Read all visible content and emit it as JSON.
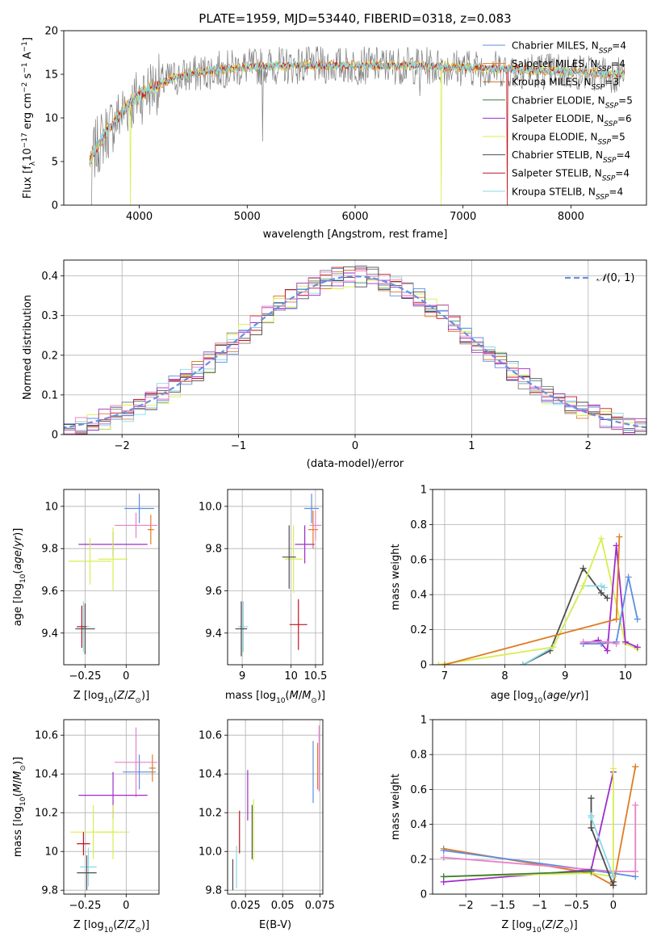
{
  "figure_title": "PLATE=1959, MJD=53440, FIBERID=0318, z=0.083",
  "colors": {
    "blue": "#5b8fe0",
    "orange": "#e07b24",
    "brown": "#b8742a",
    "gray": "#7f7f7f",
    "purple": "#a02cc8",
    "yellow": "#d8ee50",
    "dark": "#4d4d4d",
    "red": "#c0141f",
    "cyan": "#8ad8e8",
    "pink": "#e880c8",
    "gauss": "#6a8fdc"
  },
  "chart_data": [
    {
      "name": "spectrum",
      "type": "line",
      "title": "PLATE=1959, MJD=53440, FIBERID=0318, z=0.083",
      "xlabel": "wavelength [Angstrom, rest frame]",
      "ylabel": "Flux [f_λ 10^-17 erg cm^-2 s^-1 A^-1]",
      "xlim": [
        3300,
        8700
      ],
      "ylim": [
        0,
        20
      ],
      "xticks": [
        4000,
        5000,
        6000,
        7000,
        8000
      ],
      "yticks": [
        0,
        5,
        10,
        15,
        20
      ],
      "grid": false,
      "legend_position": "right",
      "series": [
        {
          "name": "Chabrier MILES, N_SSP=4",
          "color": "#5b8fe0"
        },
        {
          "name": "Salpeter MILES, N_SSP=4",
          "color": "#e07b24"
        },
        {
          "name": "Kroupa MILES, N_SSP=3",
          "color": "#b8742a"
        },
        {
          "name": "Chabrier ELODIE, N_SSP=5",
          "color": "#3a7d3a"
        },
        {
          "name": "Salpeter ELODIE, N_SSP=6",
          "color": "#a02cc8"
        },
        {
          "name": "Kroupa ELODIE, N_SSP=5",
          "color": "#d8ee50"
        },
        {
          "name": "Chabrier STELIB, N_SSP=4",
          "color": "#4d4d4d"
        },
        {
          "name": "Salpeter STELIB, N_SSP=4",
          "color": "#c0141f"
        },
        {
          "name": "Kroupa STELIB, N_SSP=4",
          "color": "#8ad8e8"
        }
      ],
      "continuum": {
        "x": [
          3540,
          3600,
          3700,
          3800,
          3900,
          4000,
          4100,
          4200,
          4300,
          4500,
          4700,
          5000,
          5200,
          5500,
          6000,
          6500,
          7000,
          7200,
          7400,
          7600,
          8000,
          8300,
          8500
        ],
        "y": [
          5,
          6.5,
          8.5,
          10,
          11.5,
          12.5,
          13.5,
          14,
          14.5,
          15,
          15.5,
          15.8,
          16,
          16,
          16,
          16,
          15.8,
          15.7,
          15.6,
          15.5,
          15.3,
          15.1,
          15
        ]
      }
    },
    {
      "name": "residual-distribution",
      "type": "histogram",
      "xlabel": "(data-model)/error",
      "ylabel": "Normed distribution",
      "xlim": [
        -2.5,
        2.5
      ],
      "ylim": [
        0,
        0.44
      ],
      "xticks": [
        -2,
        -1,
        0,
        1,
        2
      ],
      "yticks": [
        0.0,
        0.1,
        0.2,
        0.3,
        0.4
      ],
      "grid": true,
      "legend": [
        "N(0,1)"
      ],
      "legend_position": "top-right",
      "bin_width": 0.1,
      "reference_curve": "gaussian, mean 0, sigma 1"
    },
    {
      "name": "age-vs-metallicity",
      "type": "error-cross",
      "xlabel": "Z [log10(Z/Z⊙)]",
      "ylabel": "age  [log10(age/yr)]",
      "xlim": [
        -0.38,
        0.2
      ],
      "ylim": [
        9.25,
        10.08
      ],
      "xticks": [
        -0.25,
        0.0
      ],
      "yticks": [
        9.4,
        9.6,
        9.8,
        10.0
      ],
      "grid": true,
      "points": [
        {
          "x": 0.08,
          "y": 9.99,
          "xerr": 0.09,
          "yerr": 0.07,
          "color": "#5b8fe0"
        },
        {
          "x": 0.15,
          "y": 9.89,
          "xerr": 0.02,
          "yerr": 0.07,
          "color": "#e07b24"
        },
        {
          "x": 0.06,
          "y": 9.91,
          "xerr": 0.13,
          "yerr": 0.06,
          "color": "#e880c8"
        },
        {
          "x": -0.08,
          "y": 9.82,
          "xerr": 0.21,
          "yerr": 0.06,
          "color": "#a02cc8"
        },
        {
          "x": -0.08,
          "y": 9.75,
          "xerr": 0.09,
          "yerr": 0.15,
          "color": "#d8ee50"
        },
        {
          "x": -0.22,
          "y": 9.74,
          "xerr": 0.13,
          "yerr": 0.11,
          "color": "#d8ee50"
        },
        {
          "x": -0.26,
          "y": 9.43,
          "xerr": 0.04,
          "yerr": 0.12,
          "color": "#8ad8e8"
        },
        {
          "x": -0.27,
          "y": 9.43,
          "xerr": 0.03,
          "yerr": 0.1,
          "color": "#c0141f"
        },
        {
          "x": -0.25,
          "y": 9.42,
          "xerr": 0.06,
          "yerr": 0.12,
          "color": "#4d4d4d"
        }
      ]
    },
    {
      "name": "age-vs-mass",
      "type": "error-cross",
      "xlabel": "mass [log10(M/M⊙)]",
      "ylabel": "",
      "xlim": [
        8.7,
        10.65
      ],
      "ylim": [
        9.25,
        10.08
      ],
      "xticks": [
        9.0,
        10.0,
        10.5
      ],
      "ytick_labels": [
        "9.4",
        "9.6",
        "9.8",
        "10.0"
      ],
      "yticks": [
        9.4,
        9.6,
        9.8,
        10.0
      ],
      "grid": true,
      "points": [
        {
          "x": 10.42,
          "y": 9.99,
          "xerr": 0.15,
          "yerr": 0.07,
          "color": "#5b8fe0"
        },
        {
          "x": 10.45,
          "y": 9.89,
          "xerr": 0.1,
          "yerr": 0.09,
          "color": "#e07b24"
        },
        {
          "x": 10.5,
          "y": 9.91,
          "xerr": 0.12,
          "yerr": 0.07,
          "color": "#e880c8"
        },
        {
          "x": 10.28,
          "y": 9.82,
          "xerr": 0.2,
          "yerr": 0.09,
          "color": "#a02cc8"
        },
        {
          "x": 10.05,
          "y": 9.75,
          "xerr": 0.18,
          "yerr": 0.16,
          "color": "#d8ee50"
        },
        {
          "x": 9.96,
          "y": 9.76,
          "xerr": 0.14,
          "yerr": 0.15,
          "color": "#4d4d4d"
        },
        {
          "x": 9.02,
          "y": 9.43,
          "xerr": 0.1,
          "yerr": 0.12,
          "color": "#8ad8e8"
        },
        {
          "x": 10.15,
          "y": 9.44,
          "xerr": 0.18,
          "yerr": 0.12,
          "color": "#c0141f"
        },
        {
          "x": 8.98,
          "y": 9.42,
          "xerr": 0.12,
          "yerr": 0.13,
          "color": "#4d4d4d"
        }
      ]
    },
    {
      "name": "mass-weight-vs-age",
      "type": "line",
      "xlabel": "age  [log10(age/yr)]",
      "ylabel": "mass weight",
      "xlim": [
        6.8,
        10.35
      ],
      "ylim": [
        0,
        1.0
      ],
      "xticks": [
        7,
        8,
        9,
        10
      ],
      "yticks": [
        0.0,
        0.2,
        0.4,
        0.6,
        0.8,
        1.0
      ],
      "grid": true,
      "series": [
        {
          "color": "#4d4d4d",
          "x": [
            8.3,
            8.75,
            9.3,
            9.6,
            9.7
          ],
          "y": [
            0.0,
            0.08,
            0.55,
            0.41,
            0.38
          ]
        },
        {
          "color": "#8ad8e8",
          "x": [
            8.3,
            8.8,
            9.3,
            9.6,
            9.65
          ],
          "y": [
            0.0,
            0.1,
            0.45,
            0.45,
            0.44
          ]
        },
        {
          "color": "#d8ee50",
          "x": [
            6.9,
            8.8,
            9.3,
            9.6,
            10.0,
            10.2
          ],
          "y": [
            0.0,
            0.1,
            0.45,
            0.72,
            0.12,
            0.09
          ]
        },
        {
          "color": "#a02cc8",
          "x": [
            9.3,
            9.55,
            9.7,
            9.85,
            10.0,
            10.2
          ],
          "y": [
            0.12,
            0.14,
            0.08,
            0.68,
            0.13,
            0.1
          ]
        },
        {
          "color": "#5b8fe0",
          "x": [
            9.3,
            9.6,
            9.85,
            10.05,
            10.2
          ],
          "y": [
            0.12,
            0.12,
            0.13,
            0.5,
            0.26
          ]
        },
        {
          "color": "#e07b24",
          "x": [
            7.0,
            9.85,
            9.9
          ],
          "y": [
            0.0,
            0.26,
            0.73
          ]
        },
        {
          "color": "#e880c8",
          "x": [
            9.3,
            9.7,
            9.85
          ],
          "y": [
            0.13,
            0.13,
            0.12
          ]
        }
      ]
    },
    {
      "name": "mass-vs-metallicity",
      "type": "error-cross",
      "xlabel": "Z [log10(Z/Z⊙)]",
      "ylabel": "mass [log10(M/M⊙)]",
      "xlim": [
        -0.38,
        0.2
      ],
      "ylim": [
        9.78,
        10.68
      ],
      "xticks": [
        -0.25,
        0.0
      ],
      "yticks": [
        9.8,
        10.0,
        10.2,
        10.4,
        10.6
      ],
      "grid": true,
      "points": [
        {
          "x": 0.08,
          "y": 10.41,
          "xerr": 0.1,
          "yerr": 0.09,
          "color": "#5b8fe0"
        },
        {
          "x": 0.16,
          "y": 10.43,
          "xerr": 0.02,
          "yerr": 0.07,
          "color": "#e07b24"
        },
        {
          "x": 0.06,
          "y": 10.46,
          "xerr": 0.13,
          "yerr": 0.18,
          "color": "#e880c8"
        },
        {
          "x": -0.08,
          "y": 10.29,
          "xerr": 0.21,
          "yerr": 0.12,
          "color": "#a02cc8"
        },
        {
          "x": -0.08,
          "y": 10.1,
          "xerr": 0.1,
          "yerr": 0.14,
          "color": "#d8ee50"
        },
        {
          "x": -0.2,
          "y": 10.1,
          "xerr": 0.14,
          "yerr": 0.14,
          "color": "#d8ee50"
        },
        {
          "x": -0.23,
          "y": 9.92,
          "xerr": 0.05,
          "yerr": 0.1,
          "color": "#8ad8e8"
        },
        {
          "x": -0.26,
          "y": 10.04,
          "xerr": 0.04,
          "yerr": 0.06,
          "color": "#c0141f"
        },
        {
          "x": -0.24,
          "y": 9.89,
          "xerr": 0.06,
          "yerr": 0.09,
          "color": "#4d4d4d"
        }
      ]
    },
    {
      "name": "mass-vs-extinction",
      "type": "error-bar",
      "xlabel": "E(B-V)",
      "ylabel": "",
      "xlim": [
        0.013,
        0.077
      ],
      "ylim": [
        9.78,
        10.68
      ],
      "xticks": [
        0.025,
        0.05,
        0.075
      ],
      "ytick_labels": [
        "9.8",
        "10.0",
        "10.2",
        "10.4",
        "10.6"
      ],
      "yticks": [
        9.8,
        10.0,
        10.2,
        10.4,
        10.6
      ],
      "grid": true,
      "points": [
        {
          "x": 0.0705,
          "y": 10.41,
          "yerr": 0.16,
          "color": "#5b8fe0"
        },
        {
          "x": 0.0735,
          "y": 10.44,
          "yerr": 0.12,
          "color": "#e07b24"
        },
        {
          "x": 0.0745,
          "y": 10.48,
          "yerr": 0.17,
          "color": "#e880c8"
        },
        {
          "x": 0.0265,
          "y": 10.29,
          "yerr": 0.13,
          "color": "#a02cc8"
        },
        {
          "x": 0.0305,
          "y": 10.11,
          "yerr": 0.16,
          "color": "#d8ee50"
        },
        {
          "x": 0.0295,
          "y": 10.1,
          "yerr": 0.14,
          "color": "#4d4d4d"
        },
        {
          "x": 0.019,
          "y": 9.92,
          "yerr": 0.11,
          "color": "#8ad8e8"
        },
        {
          "x": 0.021,
          "y": 10.1,
          "yerr": 0.11,
          "color": "#c0141f"
        },
        {
          "x": 0.0165,
          "y": 9.88,
          "yerr": 0.08,
          "color": "#4d4d4d"
        }
      ]
    },
    {
      "name": "mass-weight-vs-metallicity",
      "type": "line",
      "xlabel": "Z [log10(Z/Z⊙)]",
      "ylabel": "mass weight",
      "xlim": [
        -2.45,
        0.45
      ],
      "ylim": [
        0,
        1.0
      ],
      "xticks": [
        -2.0,
        -1.5,
        -1.0,
        -0.5,
        0.0
      ],
      "yticks": [
        0.0,
        0.2,
        0.4,
        0.6,
        0.8,
        1.0
      ],
      "grid": true,
      "series": [
        {
          "color": "#e07b24",
          "x": [
            -2.3,
            -0.3,
            0.0,
            0.3
          ],
          "y": [
            0.26,
            0.12,
            0.05,
            0.73
          ]
        },
        {
          "color": "#5b8fe0",
          "x": [
            -2.3,
            0.0,
            0.3
          ],
          "y": [
            0.25,
            0.12,
            0.1
          ]
        },
        {
          "color": "#e880c8",
          "x": [
            -2.3,
            0.0,
            0.3,
            0.3
          ],
          "y": [
            0.21,
            0.13,
            0.13,
            0.51
          ]
        },
        {
          "color": "#a02cc8",
          "x": [
            -2.3,
            -0.3,
            0.0
          ],
          "y": [
            0.07,
            0.14,
            0.7
          ]
        },
        {
          "color": "#d8ee50",
          "x": [
            -2.3,
            -0.3,
            0.0,
            0.0
          ],
          "y": [
            0.1,
            0.12,
            0.1,
            0.72
          ]
        },
        {
          "color": "#3a7d3a",
          "x": [
            -2.3,
            -0.3
          ],
          "y": [
            0.1,
            0.13
          ]
        },
        {
          "color": "#4d4d4d",
          "x": [
            -0.3,
            -0.3,
            0.0,
            0.0
          ],
          "y": [
            0.55,
            0.38,
            0.05,
            0.07
          ]
        },
        {
          "color": "#8ad8e8",
          "x": [
            -0.3,
            -0.3,
            0.0
          ],
          "y": [
            0.45,
            0.44,
            0.1
          ]
        }
      ]
    }
  ]
}
